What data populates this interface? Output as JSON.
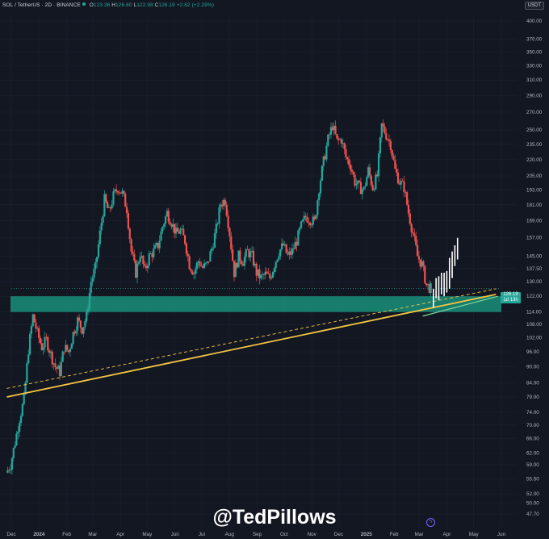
{
  "header": {
    "symbol": "SOL / TetherUS · 2D · BINANCE",
    "open_label": "O",
    "open": "123.36",
    "high_label": "H",
    "high": "126.60",
    "low_label": "L",
    "low": "122.98",
    "close_label": "C",
    "close": "126.19",
    "change": "+2.82 (+2.29%)"
  },
  "currency_badge": "USDT",
  "last_price": {
    "price": "126.19",
    "countdown": "1d 13h"
  },
  "watermark": "@TedPillows",
  "colors": {
    "background": "#131722",
    "up": "#26a69a",
    "down": "#ef5350",
    "support_zone": "#1a8c78",
    "trendline": "#f5c542",
    "projection": "#ffffff"
  },
  "icons": [
    "lightning-icon"
  ],
  "chart_data": {
    "type": "candlestick",
    "scale": "log",
    "ylim": [
      47.7,
      400
    ],
    "y_ticks": [
      "400.00",
      "370.00",
      "350.00",
      "330.00",
      "310.00",
      "290.00",
      "270.00",
      "250.00",
      "235.00",
      "220.00",
      "205.00",
      "193.00",
      "181.00",
      "169.00",
      "157.00",
      "145.00",
      "137.50",
      "130.00",
      "122.00",
      "114.00",
      "108.00",
      "102.00",
      "96.00",
      "90.00",
      "84.00",
      "79.00",
      "74.00",
      "70.00",
      "66.00",
      "62.00",
      "59.00",
      "55.50",
      "52.00",
      "50.00",
      "47.70"
    ],
    "x_ticks": [
      "Dec",
      "2024",
      "Feb",
      "Mar",
      "Apr",
      "May",
      "Jun",
      "Jul",
      "Aug",
      "Sep",
      "Oct",
      "Nov",
      "Dec",
      "2025",
      "Feb",
      "Mar",
      "Apr",
      "May",
      "Jun"
    ],
    "support_zone": [
      114,
      122
    ],
    "trendline_solid": {
      "start": [
        "2023-11-26",
        79
      ],
      "end": [
        "2025-05-26",
        123
      ]
    },
    "trendline_dashed": {
      "start": [
        "2023-11-26",
        82
      ],
      "end": [
        "2025-05-26",
        126
      ]
    },
    "price_path": [
      [
        "2023-11-26",
        57
      ],
      [
        "2023-12-01",
        59
      ],
      [
        "2023-12-06",
        65
      ],
      [
        "2023-12-11",
        72
      ],
      [
        "2023-12-16",
        78
      ],
      [
        "2023-12-21",
        97
      ],
      [
        "2023-12-26",
        112
      ],
      [
        "2023-12-31",
        104
      ],
      [
        "2024-01-05",
        98
      ],
      [
        "2024-01-10",
        101
      ],
      [
        "2024-01-15",
        95
      ],
      [
        "2024-01-20",
        90
      ],
      [
        "2024-01-25",
        88
      ],
      [
        "2024-01-30",
        98
      ],
      [
        "2024-02-04",
        96
      ],
      [
        "2024-02-09",
        104
      ],
      [
        "2024-02-14",
        110
      ],
      [
        "2024-02-19",
        106
      ],
      [
        "2024-02-24",
        112
      ],
      [
        "2024-02-29",
        130
      ],
      [
        "2024-03-05",
        138
      ],
      [
        "2024-03-10",
        160
      ],
      [
        "2024-03-15",
        185
      ],
      [
        "2024-03-20",
        175
      ],
      [
        "2024-03-25",
        188
      ],
      [
        "2024-03-30",
        195
      ],
      [
        "2024-04-04",
        190
      ],
      [
        "2024-04-09",
        178
      ],
      [
        "2024-04-14",
        148
      ],
      [
        "2024-04-19",
        135
      ],
      [
        "2024-04-24",
        147
      ],
      [
        "2024-04-29",
        136
      ],
      [
        "2024-05-04",
        145
      ],
      [
        "2024-05-09",
        148
      ],
      [
        "2024-05-14",
        152
      ],
      [
        "2024-05-19",
        165
      ],
      [
        "2024-05-24",
        175
      ],
      [
        "2024-05-29",
        168
      ],
      [
        "2024-06-03",
        160
      ],
      [
        "2024-06-08",
        162
      ],
      [
        "2024-06-13",
        155
      ],
      [
        "2024-06-18",
        140
      ],
      [
        "2024-06-23",
        135
      ],
      [
        "2024-06-28",
        142
      ],
      [
        "2024-07-03",
        138
      ],
      [
        "2024-07-08",
        140
      ],
      [
        "2024-07-13",
        150
      ],
      [
        "2024-07-18",
        163
      ],
      [
        "2024-07-23",
        182
      ],
      [
        "2024-07-28",
        185
      ],
      [
        "2024-08-02",
        160
      ],
      [
        "2024-08-07",
        135
      ],
      [
        "2024-08-12",
        145
      ],
      [
        "2024-08-17",
        142
      ],
      [
        "2024-08-22",
        148
      ],
      [
        "2024-08-27",
        145
      ],
      [
        "2024-09-01",
        135
      ],
      [
        "2024-09-06",
        132
      ],
      [
        "2024-09-11",
        134
      ],
      [
        "2024-09-16",
        132
      ],
      [
        "2024-09-21",
        140
      ],
      [
        "2024-09-26",
        148
      ],
      [
        "2024-10-01",
        152
      ],
      [
        "2024-10-06",
        145
      ],
      [
        "2024-10-11",
        148
      ],
      [
        "2024-10-16",
        155
      ],
      [
        "2024-10-21",
        165
      ],
      [
        "2024-10-26",
        172
      ],
      [
        "2024-10-31",
        170
      ],
      [
        "2024-11-05",
        168
      ],
      [
        "2024-11-10",
        195
      ],
      [
        "2024-11-15",
        218
      ],
      [
        "2024-11-20",
        240
      ],
      [
        "2024-11-25",
        255
      ],
      [
        "2024-11-30",
        238
      ],
      [
        "2024-12-05",
        240
      ],
      [
        "2024-12-10",
        222
      ],
      [
        "2024-12-15",
        215
      ],
      [
        "2024-12-20",
        200
      ],
      [
        "2024-12-25",
        195
      ],
      [
        "2024-12-30",
        193
      ],
      [
        "2025-01-04",
        210
      ],
      [
        "2025-01-09",
        195
      ],
      [
        "2025-01-14",
        205
      ],
      [
        "2025-01-19",
        255
      ],
      [
        "2025-01-24",
        245
      ],
      [
        "2025-01-29",
        235
      ],
      [
        "2025-02-03",
        210
      ],
      [
        "2025-02-08",
        200
      ],
      [
        "2025-02-13",
        195
      ],
      [
        "2025-02-18",
        175
      ],
      [
        "2025-02-23",
        160
      ],
      [
        "2025-02-28",
        145
      ],
      [
        "2025-03-05",
        140
      ],
      [
        "2025-03-10",
        128
      ],
      [
        "2025-03-15",
        126
      ]
    ],
    "projected_bars": [
      {
        "x": "2025-03-17",
        "low": 116,
        "high": 126
      },
      {
        "x": "2025-03-20",
        "low": 121,
        "high": 132
      },
      {
        "x": "2025-03-23",
        "low": 120,
        "high": 133
      },
      {
        "x": "2025-03-26",
        "low": 123,
        "high": 135
      },
      {
        "x": "2025-03-29",
        "low": 122,
        "high": 135
      },
      {
        "x": "2025-04-01",
        "low": 124,
        "high": 136
      },
      {
        "x": "2025-04-04",
        "low": 126,
        "high": 144
      },
      {
        "x": "2025-04-07",
        "low": 132,
        "high": 148
      },
      {
        "x": "2025-04-10",
        "low": 139,
        "high": 152
      },
      {
        "x": "2025-04-13",
        "low": 143,
        "high": 157
      }
    ]
  }
}
